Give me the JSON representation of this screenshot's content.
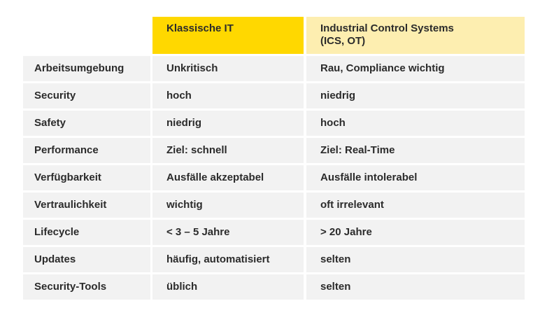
{
  "header": {
    "col1": "",
    "col2": "Klassische IT",
    "col3_line1": "Industrial Control Systems",
    "col3_line2": "(ICS, OT)"
  },
  "rows": [
    {
      "label": "Arbeitsumgebung",
      "it": "Unkritisch",
      "ics": "Rau, Compliance wichtig"
    },
    {
      "label": "Security",
      "it": "hoch",
      "ics": "niedrig"
    },
    {
      "label": "Safety",
      "it": "niedrig",
      "ics": "hoch"
    },
    {
      "label": "Performance",
      "it": "Ziel: schnell",
      "ics": "Ziel: Real-Time"
    },
    {
      "label": "Verfügbarkeit",
      "it": "Ausfälle akzeptabel",
      "ics": "Ausfälle intolerabel"
    },
    {
      "label": "Vertraulichkeit",
      "it": "wichtig",
      "ics": "oft irrelevant"
    },
    {
      "label": "Lifecycle",
      "it": "<  3 – 5 Jahre",
      "ics": "> 20 Jahre"
    },
    {
      "label": "Updates",
      "it": "häufig, automatisiert",
      "ics": "selten"
    },
    {
      "label": "Security-Tools",
      "it": "üblich",
      "ics": "selten"
    }
  ],
  "colors": {
    "header_it": "#ffd800",
    "header_ics": "#fdeeb0",
    "row_bg": "#f2f2f2",
    "text": "#2b2b2b"
  }
}
